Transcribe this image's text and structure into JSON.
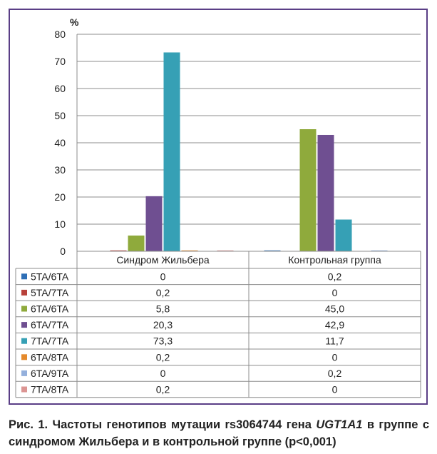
{
  "chart_data": {
    "type": "bar",
    "ylabel": "%",
    "ylim": [
      0,
      80
    ],
    "yticks": [
      0,
      10,
      20,
      30,
      40,
      50,
      60,
      70,
      80
    ],
    "grid": true,
    "legend": "table-left",
    "categories": [
      "Синдром Жильбера",
      "Контрольная группа"
    ],
    "series": [
      {
        "name": "5TA/6TA",
        "color": "#2e6fb6",
        "values": [
          0,
          0.2
        ],
        "labels": [
          "0",
          "0,2"
        ]
      },
      {
        "name": "5TA/7TA",
        "color": "#b8413b",
        "values": [
          0.2,
          0
        ],
        "labels": [
          "0,2",
          "0"
        ]
      },
      {
        "name": "6TA/6TA",
        "color": "#8faa3c",
        "values": [
          5.8,
          45.0
        ],
        "labels": [
          "5,8",
          "45,0"
        ]
      },
      {
        "name": "6TA/7TA",
        "color": "#6f4f91",
        "values": [
          20.3,
          42.9
        ],
        "labels": [
          "20,3",
          "42,9"
        ]
      },
      {
        "name": "7TA/7TA",
        "color": "#36a0b5",
        "values": [
          73.3,
          11.7
        ],
        "labels": [
          "73,3",
          "11,7"
        ]
      },
      {
        "name": "6TA/8TA",
        "color": "#e58a2c",
        "values": [
          0.2,
          0
        ],
        "labels": [
          "0,2",
          "0"
        ]
      },
      {
        "name": "6TA/9TA",
        "color": "#94b0dc",
        "values": [
          0,
          0.2
        ],
        "labels": [
          "0",
          "0,2"
        ]
      },
      {
        "name": "7TA/8TA",
        "color": "#dc9593",
        "values": [
          0.2,
          0
        ],
        "labels": [
          "0,2",
          "0"
        ]
      }
    ]
  },
  "caption": {
    "prefix": "Рис. 1. Частоты генотипов мутации rs3064744 гена ",
    "gene": "UGT1A1",
    "suffix": " в группе с синдромом Жильбера и в контрольной группе (p<0,001)"
  }
}
